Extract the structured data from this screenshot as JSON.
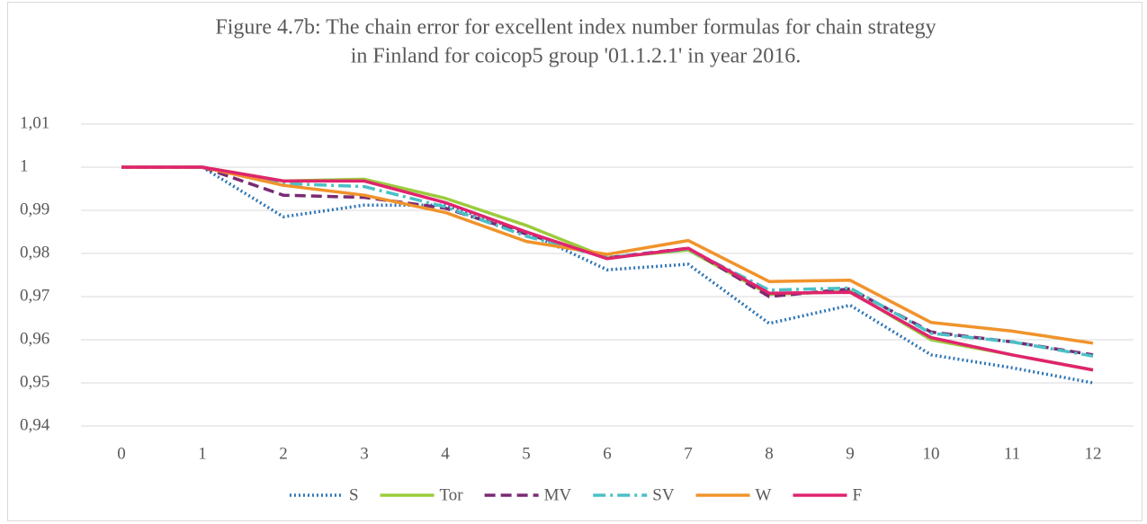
{
  "chart_data": {
    "type": "line",
    "title": [
      "Figure 4.7b: The chain error for excellent index number formulas for chain strategy",
      "in Finland for coicop5 group '01.1.2.1' in year 2016."
    ],
    "categories": [
      "0",
      "1",
      "2",
      "3",
      "4",
      "5",
      "6",
      "7",
      "8",
      "9",
      "10",
      "11",
      "12"
    ],
    "ylim": [
      0.94,
      1.01
    ],
    "yticks": [
      {
        "value": 0.94,
        "label": "0,94"
      },
      {
        "value": 0.95,
        "label": "0,95"
      },
      {
        "value": 0.96,
        "label": "0,96"
      },
      {
        "value": 0.97,
        "label": "0,97"
      },
      {
        "value": 0.98,
        "label": "0,98"
      },
      {
        "value": 0.99,
        "label": "0,99"
      },
      1,
      {
        "value": 1.01,
        "label": "1,01"
      }
    ],
    "grid": true,
    "legend": "bottom",
    "series": [
      {
        "name": "S",
        "color": "#2e75b6",
        "dash": "dotted",
        "values": [
          1,
          1,
          0.9885,
          0.9912,
          0.9912,
          0.985,
          0.9762,
          0.9775,
          0.9638,
          0.968,
          0.9565,
          0.9535,
          0.95
        ]
      },
      {
        "name": "Tor",
        "color": "#9bcb3c",
        "dash": "solid",
        "values": [
          1,
          1,
          0.9968,
          0.9972,
          0.9928,
          0.9865,
          0.979,
          0.9808,
          0.9705,
          0.9712,
          0.96,
          0.9565,
          0.953
        ]
      },
      {
        "name": "MV",
        "color": "#7a2a72",
        "dash": "dashed",
        "values": [
          1,
          1,
          0.9935,
          0.993,
          0.9905,
          0.9845,
          0.979,
          0.9812,
          0.97,
          0.9718,
          0.9618,
          0.9595,
          0.9565
        ]
      },
      {
        "name": "SV",
        "color": "#4ac0c6",
        "dash": "dashdot",
        "values": [
          1,
          1,
          0.9962,
          0.9955,
          0.9908,
          0.984,
          0.979,
          0.981,
          0.9715,
          0.972,
          0.9615,
          0.9595,
          0.9562
        ]
      },
      {
        "name": "W",
        "color": "#f0932b",
        "dash": "solid",
        "values": [
          1,
          1,
          0.9958,
          0.9935,
          0.9895,
          0.9828,
          0.9798,
          0.983,
          0.9735,
          0.9738,
          0.964,
          0.962,
          0.9592
        ]
      },
      {
        "name": "F",
        "color": "#e0246e",
        "dash": "solid",
        "values": [
          1,
          1,
          0.9968,
          0.9968,
          0.9918,
          0.985,
          0.9788,
          0.9812,
          0.9708,
          0.971,
          0.9605,
          0.9565,
          0.953
        ]
      }
    ]
  }
}
